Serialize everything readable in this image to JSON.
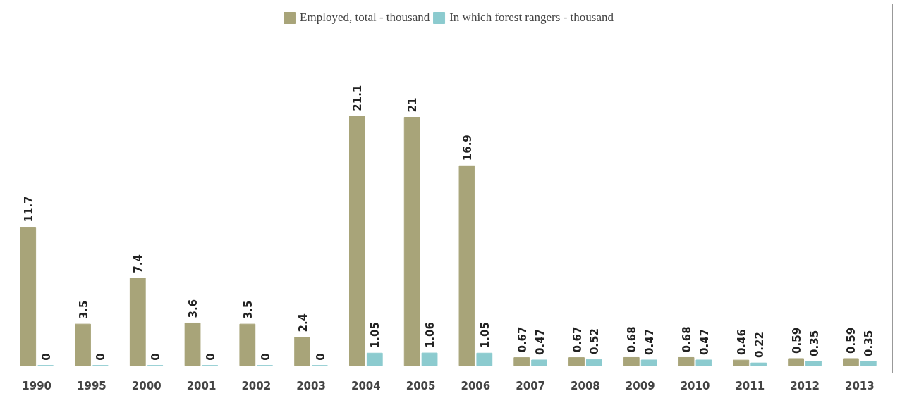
{
  "chart_data": {
    "type": "bar",
    "categories": [
      "1990",
      "1995",
      "2000",
      "2001",
      "2002",
      "2003",
      "2004",
      "2005",
      "2006",
      "2007",
      "2008",
      "2009",
      "2010",
      "2011",
      "2012",
      "2013"
    ],
    "series": [
      {
        "name": "Employed, total - thousand",
        "color": "#a8a479",
        "values": [
          11.7,
          3.5,
          7.4,
          3.6,
          3.5,
          2.4,
          21.1,
          21,
          16.9,
          0.67,
          0.67,
          0.68,
          0.68,
          0.46,
          0.59,
          0.59
        ]
      },
      {
        "name": "In which forest rangers - thousand",
        "color": "#8ccbcf",
        "values": [
          0,
          0,
          0,
          0,
          0,
          0,
          1.05,
          1.06,
          1.05,
          0.47,
          0.52,
          0.47,
          0.47,
          0.22,
          0.35,
          0.35
        ]
      }
    ],
    "data_labels": true,
    "legend": "top",
    "grid": false
  }
}
